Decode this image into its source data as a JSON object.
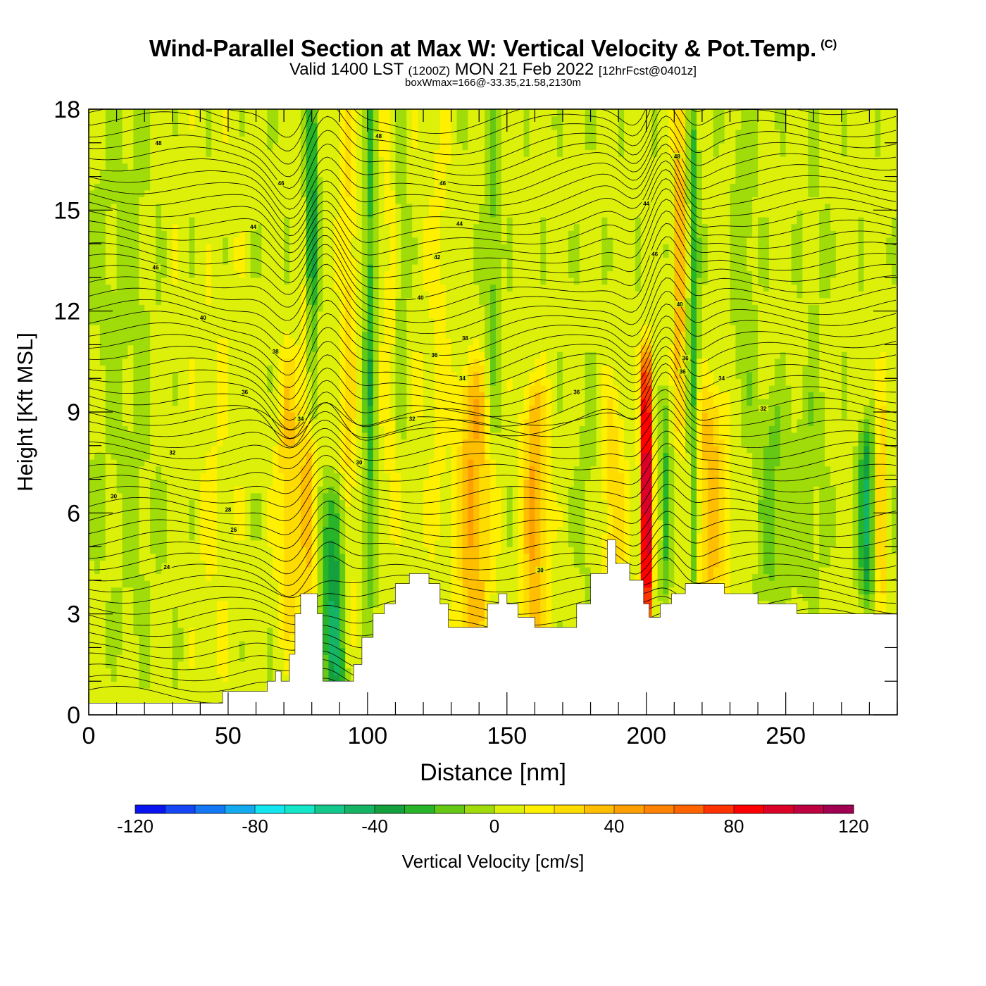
{
  "header": {
    "title": "Wind-Parallel Section at Max W: Vertical Velocity & Pot.Temp.",
    "copyright": "(C)",
    "valid_prefix": "Valid 1400 LST",
    "valid_utc": "(1200Z)",
    "valid_date": "MON 21 Feb 2022",
    "forecast": "[12hrFcst@0401z]",
    "box_info": "boxWmax=166@-33.35,21.58,2130m"
  },
  "chart_data": {
    "type": "heatmap",
    "xlabel": "Distance [nm]",
    "ylabel": "Height [Kft MSL]",
    "xlim": [
      0,
      290
    ],
    "ylim": [
      0,
      18
    ],
    "x_ticks": [
      0,
      50,
      100,
      150,
      200,
      250
    ],
    "y_ticks": [
      0,
      3,
      6,
      9,
      12,
      15,
      18
    ],
    "colorbar": {
      "label": "Vertical Velocity [cm/s]",
      "range": [
        -120,
        120
      ],
      "step": 10,
      "tick_values": [
        -120,
        -80,
        -40,
        0,
        40,
        80,
        120
      ],
      "colors": [
        "#0a14f0",
        "#1446f5",
        "#1478f5",
        "#14aaf0",
        "#14e6f0",
        "#14e6c8",
        "#14c88c",
        "#14b464",
        "#14a03c",
        "#28b428",
        "#64c814",
        "#a0dc0a",
        "#dcf00a",
        "#fff000",
        "#ffdc00",
        "#ffbe00",
        "#ffa000",
        "#ff8200",
        "#ff6400",
        "#ff3200",
        "#ff0000",
        "#dc0028",
        "#be0040",
        "#a00050"
      ]
    },
    "theta_labels": [
      {
        "x": 25,
        "y": 17.0,
        "value": "48"
      },
      {
        "x": 69,
        "y": 15.8,
        "value": "46"
      },
      {
        "x": 104,
        "y": 17.2,
        "value": "48"
      },
      {
        "x": 127,
        "y": 15.8,
        "value": "46"
      },
      {
        "x": 59,
        "y": 14.5,
        "value": "44"
      },
      {
        "x": 133,
        "y": 14.6,
        "value": "44"
      },
      {
        "x": 200,
        "y": 15.2,
        "value": "44"
      },
      {
        "x": 211,
        "y": 16.6,
        "value": "48"
      },
      {
        "x": 24,
        "y": 13.3,
        "value": "46"
      },
      {
        "x": 125,
        "y": 13.6,
        "value": "42"
      },
      {
        "x": 203,
        "y": 13.7,
        "value": "46"
      },
      {
        "x": 41,
        "y": 11.8,
        "value": "40"
      },
      {
        "x": 119,
        "y": 12.4,
        "value": "40"
      },
      {
        "x": 212,
        "y": 12.2,
        "value": "40"
      },
      {
        "x": 135,
        "y": 11.2,
        "value": "38"
      },
      {
        "x": 67,
        "y": 10.8,
        "value": "38"
      },
      {
        "x": 124,
        "y": 10.7,
        "value": "36"
      },
      {
        "x": 214,
        "y": 10.6,
        "value": "36"
      },
      {
        "x": 213,
        "y": 10.2,
        "value": "36"
      },
      {
        "x": 134,
        "y": 10.0,
        "value": "34"
      },
      {
        "x": 227,
        "y": 10.0,
        "value": "34"
      },
      {
        "x": 56,
        "y": 9.6,
        "value": "36"
      },
      {
        "x": 175,
        "y": 9.6,
        "value": "36"
      },
      {
        "x": 76,
        "y": 8.8,
        "value": "34"
      },
      {
        "x": 116,
        "y": 8.8,
        "value": "32"
      },
      {
        "x": 242,
        "y": 9.1,
        "value": "32"
      },
      {
        "x": 30,
        "y": 7.8,
        "value": "32"
      },
      {
        "x": 97,
        "y": 7.5,
        "value": "30"
      },
      {
        "x": 9,
        "y": 6.5,
        "value": "30"
      },
      {
        "x": 50,
        "y": 6.1,
        "value": "28"
      },
      {
        "x": 52,
        "y": 5.5,
        "value": "26"
      },
      {
        "x": 28,
        "y": 4.4,
        "value": "24"
      },
      {
        "x": 162,
        "y": 4.3,
        "value": "30"
      }
    ],
    "terrain_height_kft": [
      [
        0,
        0.35
      ],
      [
        47,
        0.35
      ],
      [
        48,
        0.7
      ],
      [
        62,
        0.7
      ],
      [
        64,
        1.0
      ],
      [
        67,
        1.3
      ],
      [
        69,
        1.0
      ],
      [
        72,
        1.8
      ],
      [
        74,
        3.0
      ],
      [
        76,
        3.6
      ],
      [
        80,
        3.6
      ],
      [
        82,
        3.0
      ],
      [
        84,
        1.0
      ],
      [
        88,
        1.0
      ],
      [
        92,
        1.0
      ],
      [
        95,
        1.5
      ],
      [
        98,
        2.3
      ],
      [
        102,
        3.0
      ],
      [
        106,
        3.3
      ],
      [
        110,
        3.9
      ],
      [
        115,
        4.2
      ],
      [
        122,
        3.9
      ],
      [
        126,
        3.3
      ],
      [
        129,
        2.6
      ],
      [
        135,
        2.6
      ],
      [
        143,
        3.3
      ],
      [
        147,
        3.6
      ],
      [
        150,
        3.3
      ],
      [
        154,
        2.9
      ],
      [
        160,
        2.6
      ],
      [
        170,
        2.6
      ],
      [
        175,
        3.3
      ],
      [
        180,
        4.2
      ],
      [
        186,
        5.2
      ],
      [
        189,
        4.5
      ],
      [
        194,
        4.0
      ],
      [
        199,
        3.3
      ],
      [
        201,
        2.9
      ],
      [
        205,
        3.3
      ],
      [
        209,
        3.6
      ],
      [
        214,
        3.9
      ],
      [
        222,
        3.9
      ],
      [
        228,
        3.6
      ],
      [
        236,
        3.6
      ],
      [
        240,
        3.3
      ],
      [
        252,
        3.3
      ],
      [
        254,
        3.0
      ],
      [
        270,
        3.0
      ],
      [
        290,
        3.0
      ]
    ]
  }
}
